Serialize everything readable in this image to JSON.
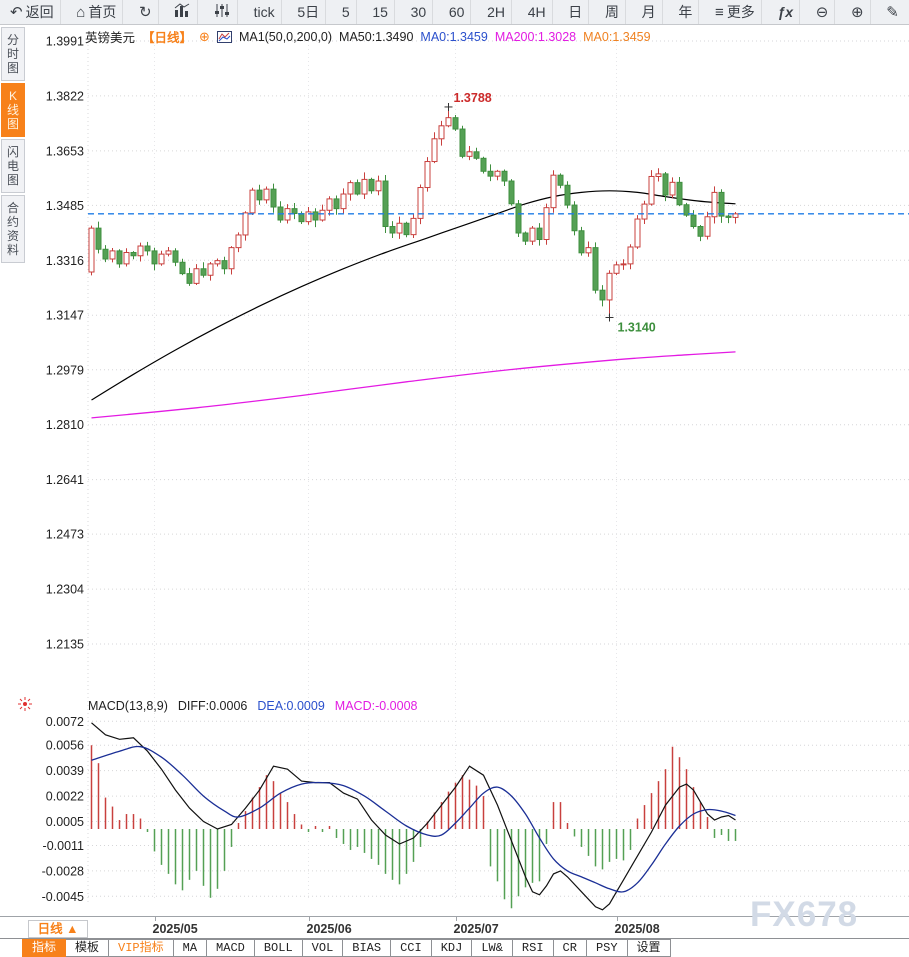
{
  "icons": {
    "back": "↶",
    "home": "⌂",
    "refresh": "↻",
    "menu": "≡",
    "zoom_out": "⊖",
    "zoom_in": "⊕",
    "pen": "✎",
    "fx": "ƒx",
    "circle_plus": "⊕",
    "triangle_up": "▲"
  },
  "colors": {
    "accent_orange": "#f7811a",
    "candle_up": "#c8403e",
    "candle_down_fill": "#55a055",
    "candle_down_stroke": "#3f8f3f",
    "ma50": "#000000",
    "ma200": "#e31ae3",
    "diff_line": "#111111",
    "dea_line": "#1b2f96",
    "price_dash_line": "#1f7ce6",
    "peak_label": "#cc2a2a",
    "trough_label": "#3d8f3d",
    "blue_text": "#2b50cc",
    "magenta_text": "#e21ce2",
    "orange_text": "#ef8222",
    "grid": "#d6d6d8",
    "watermark": "#d2dae6"
  },
  "toolbar": {
    "items": [
      {
        "id": "back",
        "icon": "back",
        "label": "返回"
      },
      {
        "id": "home",
        "icon": "home",
        "label": "首页"
      },
      {
        "id": "refresh",
        "icon": "refresh",
        "label": ""
      },
      {
        "id": "chart-type",
        "svg": "bar-chart",
        "label": ""
      },
      {
        "id": "indicator-settings",
        "svg": "sliders",
        "label": ""
      },
      {
        "id": "tick",
        "label": "tick"
      },
      {
        "id": "5d",
        "label": "5日"
      },
      {
        "id": "5m",
        "label": "5"
      },
      {
        "id": "15m",
        "label": "15"
      },
      {
        "id": "30m",
        "label": "30"
      },
      {
        "id": "60m",
        "label": "60"
      },
      {
        "id": "2h",
        "label": "2H"
      },
      {
        "id": "4h",
        "label": "4H"
      },
      {
        "id": "day",
        "label": "日"
      },
      {
        "id": "week",
        "label": "周"
      },
      {
        "id": "month",
        "label": "月"
      },
      {
        "id": "year",
        "label": "年"
      },
      {
        "id": "more",
        "icon": "menu",
        "label": "更多"
      },
      {
        "id": "formula",
        "icon": "fx",
        "label": ""
      },
      {
        "id": "zoom-out",
        "icon": "zoom_out",
        "label": ""
      },
      {
        "id": "zoom-in",
        "icon": "zoom_in",
        "label": ""
      },
      {
        "id": "draw",
        "icon": "pen",
        "label": ""
      }
    ]
  },
  "sidebar": {
    "items": [
      {
        "id": "time-chart",
        "label": "分时图",
        "active": false
      },
      {
        "id": "kline-chart",
        "label": "K线图",
        "active": true
      },
      {
        "id": "lightning-chart",
        "label": "闪电图",
        "active": false
      },
      {
        "id": "contract-info",
        "label": "合约资料",
        "active": false
      }
    ]
  },
  "chart_header": {
    "symbol": "英镑美元",
    "period": "【日线】",
    "ma_label": "MA1(50,0,200,0)",
    "ma50": "MA50:1.3490",
    "ma0_blue": "MA0:1.3459",
    "ma200": "MA200:1.3028",
    "ma0_orange": "MA0:1.3459"
  },
  "macd_header": {
    "title": "MACD(13,8,9)",
    "diff": "DIFF:0.0006",
    "dea": "DEA:0.0009",
    "macd": "MACD:-0.0008"
  },
  "axis_row": {
    "period_label": "日线",
    "arrow": "▲"
  },
  "bottom_bar": {
    "tabs": [
      {
        "label": "指标",
        "state": "active"
      },
      {
        "label": "模板",
        "state": "normal"
      },
      {
        "label": "VIP指标",
        "state": "vip"
      },
      {
        "label": "MA",
        "state": "normal"
      },
      {
        "label": "MACD",
        "state": "normal"
      },
      {
        "label": "BOLL",
        "state": "normal"
      },
      {
        "label": "VOL",
        "state": "normal"
      },
      {
        "label": "BIAS",
        "state": "normal"
      },
      {
        "label": "CCI",
        "state": "normal"
      },
      {
        "label": "KDJ",
        "state": "normal"
      },
      {
        "label": "LW&",
        "state": "normal"
      },
      {
        "label": "RSI",
        "state": "normal"
      },
      {
        "label": "CR",
        "state": "normal"
      },
      {
        "label": "PSY",
        "state": "normal"
      },
      {
        "label": "设置",
        "state": "normal"
      }
    ]
  },
  "watermark": "FX678",
  "chart_data": {
    "type": "candlestick",
    "title": "英镑美元 日线",
    "indicator": "MACD(13,8,9)",
    "price_axis_ticks": [
      1.3991,
      1.3822,
      1.3653,
      1.3485,
      1.3316,
      1.3147,
      1.2979,
      1.281,
      1.2641,
      1.2473,
      1.2304,
      1.2135
    ],
    "macd_axis_ticks": [
      0.0072,
      0.0056,
      0.0039,
      0.0022,
      0.0005,
      -0.0011,
      -0.0028,
      -0.0045
    ],
    "months": [
      {
        "label": "2025/05",
        "candle_index": 9
      },
      {
        "label": "2025/06",
        "candle_index": 31
      },
      {
        "label": "2025/07",
        "candle_index": 52
      },
      {
        "label": "2025/08",
        "candle_index": 75
      }
    ],
    "first_open": 1.328,
    "closes": [
      1.3415,
      1.335,
      1.332,
      1.3345,
      1.3305,
      1.334,
      1.333,
      1.336,
      1.3345,
      1.3305,
      1.3335,
      1.3345,
      1.331,
      1.3275,
      1.3245,
      1.329,
      1.327,
      1.3305,
      1.3315,
      1.329,
      1.3355,
      1.3394,
      1.3462,
      1.3532,
      1.3502,
      1.3535,
      1.348,
      1.344,
      1.3475,
      1.346,
      1.3435,
      1.3465,
      1.344,
      1.347,
      1.3505,
      1.3475,
      1.352,
      1.3555,
      1.352,
      1.3565,
      1.353,
      1.356,
      1.342,
      1.34,
      1.343,
      1.3395,
      1.3445,
      1.354,
      1.362,
      1.369,
      1.373,
      1.3755,
      1.372,
      1.3636,
      1.365,
      1.363,
      1.359,
      1.3575,
      1.359,
      1.356,
      1.349,
      1.34,
      1.3375,
      1.3415,
      1.338,
      1.3478,
      1.3578,
      1.3547,
      1.3486,
      1.3407,
      1.3339,
      1.3355,
      1.3224,
      1.3194,
      1.3276,
      1.3302,
      1.3305,
      1.3357,
      1.3443,
      1.3489,
      1.3574,
      1.3582,
      1.3517,
      1.3556,
      1.3487,
      1.3455,
      1.342,
      1.339,
      1.345,
      1.3525,
      1.3452,
      1.3448,
      1.3459
    ],
    "peak": {
      "index": 51,
      "high": 1.3788,
      "label": "1.3788"
    },
    "trough": {
      "index": 74,
      "low": 1.314,
      "label": "1.3140"
    },
    "last_price": 1.3459,
    "ma50_points": [
      [
        0,
        1.2886
      ],
      [
        6,
        1.2965
      ],
      [
        12,
        1.304
      ],
      [
        18,
        1.311
      ],
      [
        24,
        1.3175
      ],
      [
        30,
        1.3235
      ],
      [
        36,
        1.329
      ],
      [
        42,
        1.334
      ],
      [
        48,
        1.3385
      ],
      [
        54,
        1.343
      ],
      [
        58,
        1.346
      ],
      [
        62,
        1.349
      ],
      [
        66,
        1.3512
      ],
      [
        70,
        1.3525
      ],
      [
        74,
        1.353
      ],
      [
        78,
        1.3525
      ],
      [
        82,
        1.3512
      ],
      [
        86,
        1.35
      ],
      [
        89,
        1.3494
      ],
      [
        92,
        1.349
      ]
    ],
    "ma200_points": [
      [
        0,
        1.2831
      ],
      [
        15,
        1.2862
      ],
      [
        30,
        1.29
      ],
      [
        45,
        1.2942
      ],
      [
        60,
        1.298
      ],
      [
        75,
        1.301
      ],
      [
        85,
        1.3025
      ],
      [
        92,
        1.3034
      ]
    ],
    "macd_hist": [
      0.0056,
      0.0044,
      0.0021,
      0.0015,
      0.0006,
      0.001,
      0.001,
      0.0007,
      -0.0002,
      -0.0015,
      -0.0024,
      -0.003,
      -0.0037,
      -0.0041,
      -0.0034,
      -0.0028,
      -0.0038,
      -0.0046,
      -0.004,
      -0.0028,
      -0.0012,
      0.0004,
      0.0012,
      0.0021,
      0.0028,
      0.0036,
      0.0032,
      0.0024,
      0.0018,
      0.001,
      0.0003,
      -0.0002,
      0.0002,
      -0.0002,
      0.0002,
      -0.0006,
      -0.001,
      -0.0014,
      -0.0012,
      -0.0016,
      -0.002,
      -0.0024,
      -0.003,
      -0.0034,
      -0.0037,
      -0.003,
      -0.0022,
      -0.0012,
      0.0005,
      0.0011,
      0.0018,
      0.0025,
      0.0031,
      0.0036,
      0.0033,
      0.0029,
      0.0022,
      -0.0025,
      -0.0035,
      -0.0047,
      -0.0053,
      -0.0045,
      -0.0039,
      -0.0036,
      -0.0035,
      -0.001,
      0.0018,
      0.0018,
      0.0004,
      -0.0005,
      -0.0012,
      -0.0018,
      -0.0025,
      -0.0027,
      -0.0022,
      -0.002,
      -0.0021,
      -0.0014,
      0.0007,
      0.0016,
      0.0024,
      0.0032,
      0.004,
      0.0055,
      0.0048,
      0.004,
      0.0028,
      0.0018,
      0.0008,
      -0.0006,
      -0.0004,
      -0.0008,
      -0.0008
    ],
    "macd_diff": [
      [
        0,
        0.0071
      ],
      [
        2,
        0.0063
      ],
      [
        4,
        0.006
      ],
      [
        6,
        0.0061
      ],
      [
        8,
        0.0052
      ],
      [
        10,
        0.004
      ],
      [
        12,
        0.0026
      ],
      [
        14,
        0.0014
      ],
      [
        16,
        0.0005
      ],
      [
        18,
        0.0
      ],
      [
        20,
        0.0003
      ],
      [
        22,
        0.0014
      ],
      [
        24,
        0.0026
      ],
      [
        26,
        0.0042
      ],
      [
        28,
        0.004
      ],
      [
        30,
        0.0032
      ],
      [
        32,
        0.0031
      ],
      [
        34,
        0.0031
      ],
      [
        36,
        0.0024
      ],
      [
        38,
        0.002
      ],
      [
        40,
        0.0006
      ],
      [
        42,
        -0.0004
      ],
      [
        44,
        -0.001
      ],
      [
        46,
        -0.0006
      ],
      [
        48,
        0.0004
      ],
      [
        50,
        0.0016
      ],
      [
        52,
        0.0028
      ],
      [
        54,
        0.0042
      ],
      [
        56,
        0.0036
      ],
      [
        58,
        0.0016
      ],
      [
        60,
        -0.0008
      ],
      [
        61,
        -0.002
      ],
      [
        62,
        -0.0032
      ],
      [
        63,
        -0.0042
      ],
      [
        64,
        -0.0044
      ],
      [
        65,
        -0.0038
      ],
      [
        66,
        -0.003
      ],
      [
        67,
        -0.0028
      ],
      [
        68,
        -0.0032
      ],
      [
        70,
        -0.0042
      ],
      [
        72,
        -0.0052
      ],
      [
        73,
        -0.0054
      ],
      [
        74,
        -0.005
      ],
      [
        75,
        -0.0042
      ],
      [
        76,
        -0.0034
      ],
      [
        78,
        -0.0018
      ],
      [
        80,
        -0.0002
      ],
      [
        82,
        0.0016
      ],
      [
        84,
        0.0028
      ],
      [
        85,
        0.003
      ],
      [
        86,
        0.0026
      ],
      [
        87,
        0.0018
      ],
      [
        88,
        0.001
      ],
      [
        89,
        0.0006
      ],
      [
        90,
        0.0008
      ],
      [
        91,
        0.0009
      ],
      [
        92,
        0.0006
      ]
    ],
    "macd_dea": [
      [
        0,
        0.0046
      ],
      [
        4,
        0.0052
      ],
      [
        7,
        0.0055
      ],
      [
        10,
        0.0048
      ],
      [
        13,
        0.0036
      ],
      [
        16,
        0.0022
      ],
      [
        19,
        0.0012
      ],
      [
        21,
        0.0008
      ],
      [
        24,
        0.0014
      ],
      [
        27,
        0.0024
      ],
      [
        30,
        0.003
      ],
      [
        33,
        0.0031
      ],
      [
        36,
        0.0029
      ],
      [
        39,
        0.0022
      ],
      [
        42,
        0.0012
      ],
      [
        45,
        0.0002
      ],
      [
        48,
        -0.0004
      ],
      [
        50,
        -0.0004
      ],
      [
        52,
        0.0004
      ],
      [
        54,
        0.0014
      ],
      [
        56,
        0.0024
      ],
      [
        58,
        0.0028
      ],
      [
        60,
        0.0022
      ],
      [
        62,
        0.001
      ],
      [
        64,
        -0.0006
      ],
      [
        66,
        -0.002
      ],
      [
        68,
        -0.0028
      ],
      [
        70,
        -0.0032
      ],
      [
        72,
        -0.0036
      ],
      [
        74,
        -0.004
      ],
      [
        76,
        -0.0042
      ],
      [
        78,
        -0.0036
      ],
      [
        80,
        -0.0024
      ],
      [
        82,
        -0.001
      ],
      [
        84,
        0.0002
      ],
      [
        86,
        0.001
      ],
      [
        88,
        0.0013
      ],
      [
        90,
        0.0012
      ],
      [
        92,
        0.0009
      ]
    ]
  }
}
